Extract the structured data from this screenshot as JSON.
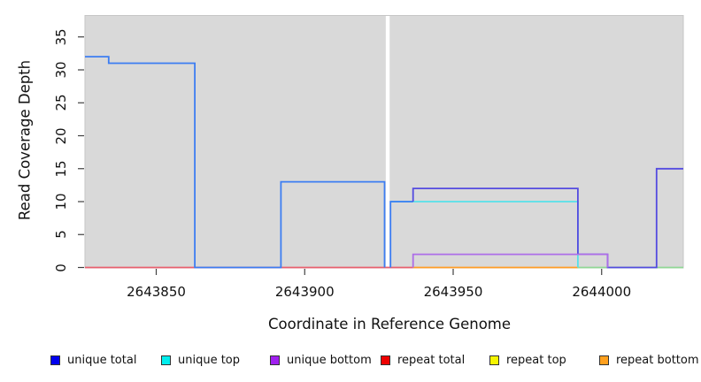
{
  "chart_data": {
    "type": "line",
    "subtype": "step",
    "title": "",
    "xlabel": "Coordinate in Reference Genome",
    "ylabel": "Read Coverage Depth",
    "x_ticks": [
      2643850,
      2643900,
      2643950,
      2644000
    ],
    "y_ticks": [
      0,
      5,
      10,
      15,
      20,
      25,
      30,
      35
    ],
    "x_range": [
      2643826,
      2644027.5
    ],
    "ylim": [
      0,
      38.25
    ],
    "grid": false,
    "plot_bg_color": "#d9d9d9",
    "plot_border_color": "#c6c6c6",
    "gap": {
      "x_start": 2643927.3,
      "x_end": 2643928.6,
      "color": "#ffffff"
    },
    "series": [
      {
        "name": "unique total",
        "steps": [
          [
            2643826,
            32
          ],
          [
            2643834,
            31
          ],
          [
            2643863,
            0
          ],
          [
            2643892,
            13
          ],
          [
            2643927,
            0
          ],
          [
            2643929,
            10
          ],
          [
            2643936,
            12
          ],
          [
            2643992,
            2
          ],
          [
            2644002,
            0
          ],
          [
            2644018,
            15
          ],
          [
            2644027,
            15
          ]
        ]
      },
      {
        "name": "unique top",
        "steps": [
          [
            2643929,
            10
          ],
          [
            2643992,
            0
          ],
          [
            2644027,
            0
          ]
        ]
      },
      {
        "name": "unique bottom",
        "steps": [
          [
            2643936,
            2
          ],
          [
            2644002,
            0
          ]
        ]
      },
      {
        "name": "repeat total",
        "steps": [
          [
            2643826,
            0
          ],
          [
            2643936,
            0
          ]
        ]
      },
      {
        "name": "repeat top",
        "steps": [
          [
            2643826,
            0
          ],
          [
            2644027,
            0
          ]
        ]
      },
      {
        "name": "repeat bottom",
        "steps": [
          [
            2643936,
            0
          ],
          [
            2643992,
            0
          ]
        ]
      }
    ],
    "render_segments": [
      {
        "name": "repeat-total-line",
        "color": "#e8606e",
        "points": [
          [
            2643826,
            0
          ],
          [
            2643936.5,
            0
          ]
        ]
      },
      {
        "name": "repeat-bottom-line",
        "color": "#ff9d26",
        "points": [
          [
            2643936.5,
            0
          ],
          [
            2643992,
            0
          ]
        ]
      },
      {
        "name": "top-overlap-green-line",
        "color": "#90d795",
        "points": [
          [
            2643992,
            0
          ],
          [
            2644027.5,
            0
          ]
        ]
      },
      {
        "name": "unique-top-line",
        "color": "#55e1e9",
        "points": [
          [
            2643928.9,
            10
          ],
          [
            2643992,
            10
          ],
          [
            2643992,
            0
          ]
        ]
      },
      {
        "name": "unique-total-left",
        "color": "#3c7df2",
        "points": [
          [
            2643826,
            32
          ],
          [
            2643834,
            32
          ],
          [
            2643834,
            31
          ],
          [
            2643863,
            31
          ],
          [
            2643863,
            0
          ],
          [
            2643892,
            0
          ],
          [
            2643892,
            13
          ],
          [
            2643926.9,
            13
          ],
          [
            2643926.9,
            0
          ]
        ]
      },
      {
        "name": "unique-total-gap-rise",
        "color": "#3c7df2",
        "points": [
          [
            2643928.9,
            0
          ],
          [
            2643928.9,
            10
          ],
          [
            2643936.5,
            10
          ]
        ]
      },
      {
        "name": "unique-total-right",
        "color": "#544be0",
        "points": [
          [
            2643936.5,
            10
          ],
          [
            2643936.5,
            12
          ],
          [
            2643992,
            12
          ],
          [
            2643992,
            2
          ],
          [
            2644002,
            2
          ],
          [
            2644002,
            0
          ],
          [
            2644018.5,
            0
          ],
          [
            2644018.5,
            15
          ],
          [
            2644027.5,
            15
          ]
        ]
      },
      {
        "name": "unique-bottom-line",
        "color": "#ad6ee8",
        "points": [
          [
            2643936.5,
            0
          ],
          [
            2643936.5,
            2
          ],
          [
            2644002,
            2
          ],
          [
            2644002,
            0
          ]
        ]
      }
    ],
    "legend": [
      {
        "label": "unique total",
        "color": "#0000ee"
      },
      {
        "label": "unique top",
        "color": "#00eeee"
      },
      {
        "label": "unique bottom",
        "color": "#a020f0"
      },
      {
        "label": "repeat total",
        "color": "#ee0000"
      },
      {
        "label": "repeat top",
        "color": "#f5f500"
      },
      {
        "label": "repeat bottom",
        "color": "#ffa01e"
      }
    ],
    "legend_position": "bottom"
  }
}
